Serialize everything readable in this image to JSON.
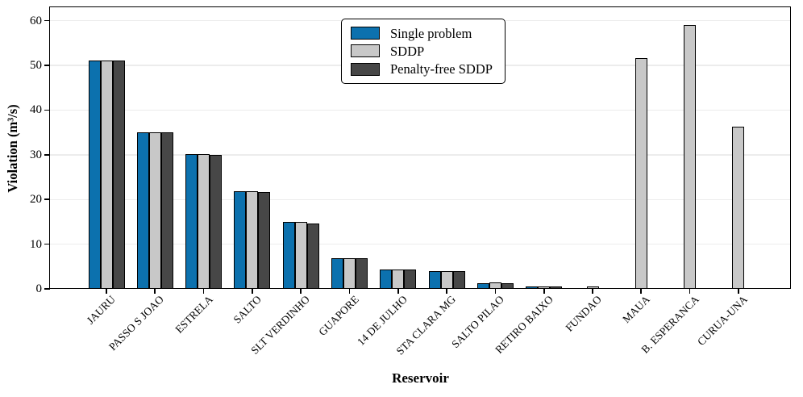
{
  "chart_data": {
    "type": "bar",
    "title": "",
    "xlabel": "Reservoir",
    "ylabel": "Violation (m³/s)",
    "ylim": [
      0,
      63
    ],
    "yticks": [
      0,
      10,
      20,
      30,
      40,
      50,
      60
    ],
    "grid": true,
    "grid_color": "#ececec",
    "axis_color": "#000000",
    "bar_edge_color": "#000000",
    "legend_position": "upper center-left inside plot",
    "categories": [
      "JAURU",
      "PASSO S JOAO",
      "ESTRELA",
      "SALTO",
      "SLT VERDINHO",
      "GUAPORE",
      "14 DE JULHO",
      "STA CLARA MG",
      "SALTO PILAO",
      "RETIRO BAIXO",
      "FUNDAO",
      "MAUA",
      "B. ESPERANCA",
      "CURUA-UNA"
    ],
    "series": [
      {
        "name": "Single problem",
        "color": "#0c71ae",
        "values": [
          51,
          35,
          30.2,
          21.9,
          14.9,
          6.9,
          4.4,
          3.9,
          1.3,
          0.6,
          0,
          0,
          0,
          0
        ]
      },
      {
        "name": "SDDP",
        "color": "#c8c8c8",
        "values": [
          51,
          35,
          30.2,
          21.9,
          14.9,
          6.9,
          4.4,
          3.9,
          1.4,
          0.6,
          0.6,
          51.7,
          59.1,
          36.2
        ]
      },
      {
        "name": "Penalty-free SDDP",
        "color": "#474747",
        "values": [
          51,
          35,
          30.0,
          21.7,
          14.7,
          6.9,
          4.4,
          3.9,
          1.3,
          0.6,
          0,
          0,
          0,
          0
        ]
      }
    ]
  }
}
